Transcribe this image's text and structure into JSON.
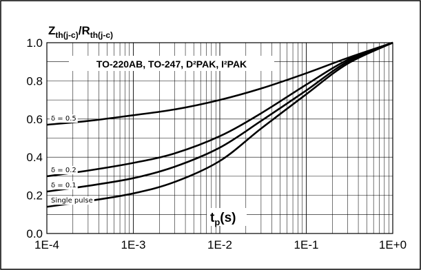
{
  "chart_data": {
    "type": "line",
    "title": "TO-220AB, TO-247, D²PAK, I²PAK",
    "ylabel": {
      "main": "Z",
      "sub1": "th(j-c)",
      "mid": "/R",
      "sub2": "th(j-c)"
    },
    "xlabel": {
      "main": "t",
      "sub": "p",
      "tail": "(s)"
    },
    "x_scale": "log",
    "xlim": [
      0.0001,
      1
    ],
    "ylim": [
      0.0,
      1.0
    ],
    "x_ticks": [
      0.0001,
      0.001,
      0.01,
      0.1,
      1
    ],
    "x_tick_labels": [
      "1E-4",
      "1E-3",
      "1E-2",
      "1E-1",
      "1E+0"
    ],
    "y_ticks": [
      0.0,
      0.2,
      0.4,
      0.6,
      0.8,
      1.0
    ],
    "y_tick_labels": [
      "0.0",
      "0.2",
      "0.4",
      "0.6",
      "0.8",
      "1.0"
    ],
    "grid": true,
    "series": [
      {
        "name": "δ = 0.5",
        "x": [
          0.0001,
          0.0003,
          0.001,
          0.003,
          0.01,
          0.03,
          0.1,
          0.3,
          1
        ],
        "y": [
          0.57,
          0.59,
          0.62,
          0.65,
          0.7,
          0.76,
          0.84,
          0.92,
          1.0
        ]
      },
      {
        "name": "δ = 0.2",
        "x": [
          0.0001,
          0.0003,
          0.001,
          0.003,
          0.01,
          0.03,
          0.1,
          0.3,
          1
        ],
        "y": [
          0.3,
          0.33,
          0.37,
          0.42,
          0.51,
          0.63,
          0.78,
          0.91,
          1.0
        ]
      },
      {
        "name": "δ = 0.1",
        "x": [
          0.0001,
          0.0003,
          0.001,
          0.003,
          0.01,
          0.03,
          0.1,
          0.3,
          1
        ],
        "y": [
          0.22,
          0.25,
          0.29,
          0.35,
          0.45,
          0.59,
          0.75,
          0.9,
          1.0
        ]
      },
      {
        "name": "Single pulse",
        "x": [
          0.0001,
          0.0003,
          0.001,
          0.003,
          0.01,
          0.03,
          0.1,
          0.3,
          1
        ],
        "y": [
          0.14,
          0.17,
          0.21,
          0.27,
          0.38,
          0.55,
          0.73,
          0.89,
          1.0
        ]
      }
    ]
  }
}
